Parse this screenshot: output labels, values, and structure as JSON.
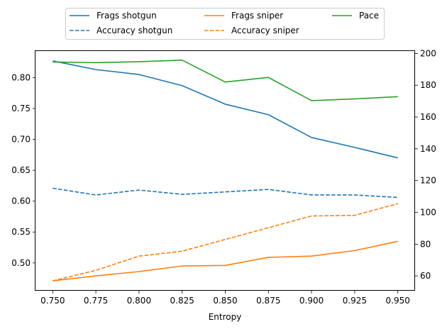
{
  "chart_data": {
    "type": "line",
    "xlabel": "Entropy",
    "ylabel": "",
    "y2label": "",
    "x": [
      0.75,
      0.775,
      0.8,
      0.825,
      0.85,
      0.875,
      0.9,
      0.925,
      0.95
    ],
    "x_ticks": [
      "0.750",
      "0.775",
      "0.800",
      "0.825",
      "0.850",
      "0.875",
      "0.900",
      "0.925",
      "0.950"
    ],
    "xlim": [
      0.74,
      0.96
    ],
    "ylim": [
      0.455,
      0.843
    ],
    "y_ticks": [
      "0.50",
      "0.55",
      "0.60",
      "0.65",
      "0.70",
      "0.75",
      "0.80"
    ],
    "y2lim": [
      50.7,
      201.5
    ],
    "y2_ticks": [
      "60",
      "80",
      "100",
      "120",
      "140",
      "160",
      "180",
      "200"
    ],
    "grid": false,
    "legend_placement": "top-center, above plot",
    "series": [
      {
        "name": "Frags shotgun",
        "axis": "left",
        "color": "#1f77b4",
        "dash": "solid",
        "values": [
          0.827,
          0.813,
          0.805,
          0.787,
          0.757,
          0.74,
          0.703,
          0.687,
          0.67
        ]
      },
      {
        "name": "Accuracy shotgun",
        "axis": "left",
        "color": "#1f77b4",
        "dash": "dashed",
        "values": [
          0.621,
          0.61,
          0.618,
          0.611,
          0.615,
          0.619,
          0.61,
          0.61,
          0.606
        ]
      },
      {
        "name": "Frags sniper",
        "axis": "left",
        "color": "#ff7f0e",
        "dash": "solid",
        "values": [
          0.471,
          0.479,
          0.486,
          0.495,
          0.496,
          0.509,
          0.511,
          0.52,
          0.535
        ]
      },
      {
        "name": "Accuracy sniper",
        "axis": "left",
        "color": "#ff7f0e",
        "dash": "dashed",
        "values": [
          0.471,
          0.488,
          0.511,
          0.519,
          0.538,
          0.557,
          0.576,
          0.577,
          0.596
        ]
      },
      {
        "name": "Pace",
        "axis": "right",
        "color": "#2ca02c",
        "dash": "solid",
        "values": [
          194.6,
          194.2,
          194.8,
          195.8,
          182.0,
          184.9,
          170.3,
          171.4,
          172.8
        ]
      }
    ]
  }
}
